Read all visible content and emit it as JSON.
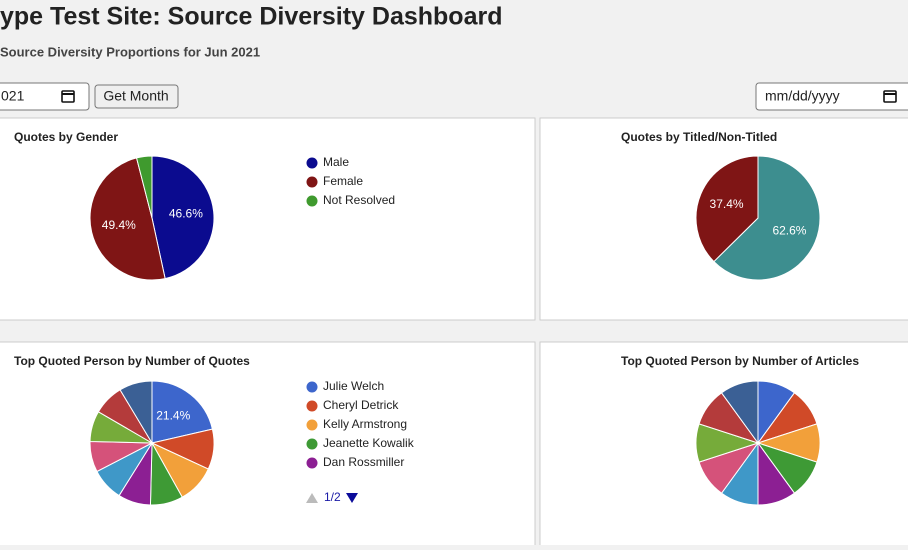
{
  "header": {
    "title": "ype Test Site: Source Diversity Dashboard",
    "subtitle": "Source Diversity Proportions for Jun 2021"
  },
  "controls": {
    "month_input": "021",
    "button": "Get Month",
    "date_input": "mm/dd/yyyy"
  },
  "chart_data": [
    {
      "type": "pie",
      "title": "Quotes by Gender",
      "categories": [
        "Male",
        "Female",
        "Not Resolved"
      ],
      "values": [
        46.6,
        49.4,
        4.0
      ],
      "value_labels": [
        "46.6%",
        "49.4%",
        null
      ],
      "colors": [
        "#0b0b8f",
        "#7f1515",
        "#3f9a2e"
      ]
    },
    {
      "type": "pie",
      "title": "Quotes by Titled/Non-Titled",
      "values": [
        62.6,
        37.4
      ],
      "value_labels": [
        "62.6%",
        "37.4%"
      ],
      "colors": [
        "#3d8e8f",
        "#7f1515"
      ]
    },
    {
      "type": "pie",
      "title": "Top Quoted Person by Number of Quotes",
      "categories": [
        "Julie Welch",
        "Cheryl Detrick",
        "Kelly Armstrong",
        "Jeanette Kowalik",
        "Dan Rossmiller",
        null,
        null,
        null,
        null,
        null
      ],
      "values": [
        21.4,
        10.5,
        10,
        8.5,
        8.5,
        8.5,
        8,
        8,
        8,
        8.6
      ],
      "value_labels": [
        "21.4%",
        null,
        null,
        null,
        null,
        null,
        null,
        null,
        null,
        null
      ],
      "colors": [
        "#3d66cc",
        "#d04a28",
        "#f2a03a",
        "#3e9a35",
        "#8c1f93",
        "#3f98c8",
        "#d5527a",
        "#76ab3a",
        "#b43b3b",
        "#3b6095"
      ],
      "legend_page": "1/2"
    },
    {
      "type": "pie",
      "title": "Top Quoted Person by Number of Articles",
      "values": [
        10,
        10,
        10,
        10,
        10,
        10,
        10,
        10,
        10,
        10
      ],
      "colors": [
        "#3d66cc",
        "#d04a28",
        "#f2a03a",
        "#3e9a35",
        "#8c1f93",
        "#3f98c8",
        "#d5527a",
        "#76ab3a",
        "#b43b3b",
        "#3b6095"
      ]
    }
  ]
}
